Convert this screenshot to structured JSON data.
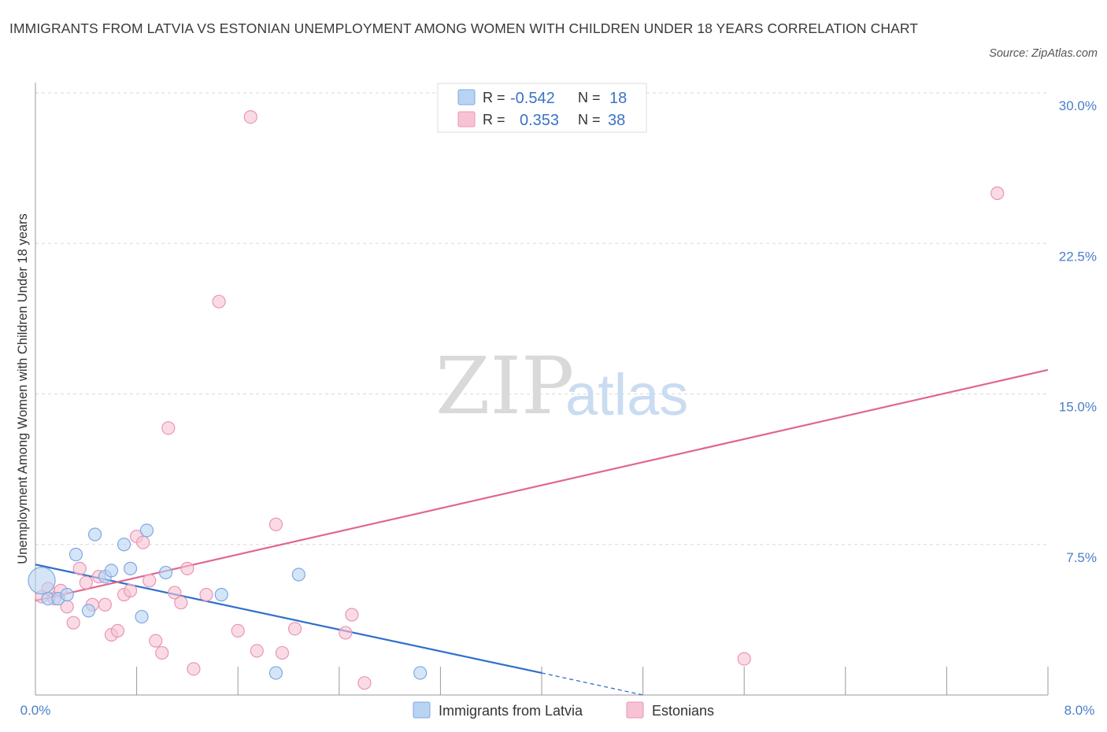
{
  "title": "IMMIGRANTS FROM LATVIA VS ESTONIAN UNEMPLOYMENT AMONG WOMEN WITH CHILDREN UNDER 18 YEARS CORRELATION CHART",
  "source": "Source: ZipAtlas.com",
  "watermark": {
    "zip": "ZIP",
    "atlas": "atlas"
  },
  "colors": {
    "blue_fill": "#b9d3f3",
    "blue_stroke": "#7ea9df",
    "blue_line": "#2f6fcc",
    "pink_fill": "#f7c3d4",
    "pink_stroke": "#e996b2",
    "pink_line": "#e0678f",
    "grid": "#d8d8d8",
    "tick_text": "#4a7ec9"
  },
  "legend": {
    "r_label": "R =",
    "n_label": "N =",
    "series": [
      {
        "name": "Immigrants from Latvia",
        "r": "-0.542",
        "n": "18"
      },
      {
        "name": "Estonians",
        "r": "0.353",
        "n": "38"
      }
    ]
  },
  "chart_data": {
    "type": "scatter",
    "title": "IMMIGRANTS FROM LATVIA VS ESTONIAN UNEMPLOYMENT AMONG WOMEN WITH CHILDREN UNDER 18 YEARS CORRELATION CHART",
    "xlabel": "",
    "ylabel": "Unemployment Among Women with Children Under 18 years",
    "xlim": [
      0,
      8
    ],
    "ylim": [
      0,
      30
    ],
    "x_tick_labels": [
      "0.0%",
      "8.0%"
    ],
    "y_ticks": [
      7.5,
      15.0,
      22.5,
      30.0
    ],
    "y_tick_labels": [
      "7.5%",
      "15.0%",
      "22.5%",
      "30.0%"
    ],
    "grid": true,
    "legend_position": "top-center",
    "series": [
      {
        "name": "Immigrants from Latvia",
        "color": "#7ea9df",
        "points": [
          [
            0.05,
            5.7
          ],
          [
            0.1,
            4.8
          ],
          [
            0.18,
            4.8
          ],
          [
            0.25,
            5.0
          ],
          [
            0.32,
            7.0
          ],
          [
            0.42,
            4.2
          ],
          [
            0.47,
            8.0
          ],
          [
            0.55,
            5.9
          ],
          [
            0.6,
            6.2
          ],
          [
            0.7,
            7.5
          ],
          [
            0.75,
            6.3
          ],
          [
            0.84,
            3.9
          ],
          [
            0.88,
            8.2
          ],
          [
            1.03,
            6.1
          ],
          [
            1.47,
            5.0
          ],
          [
            1.9,
            1.1
          ],
          [
            2.08,
            6.0
          ],
          [
            3.04,
            1.1
          ]
        ],
        "trend": {
          "x": [
            0,
            4.0
          ],
          "y": [
            6.5,
            1.1
          ],
          "dashed_extension": {
            "x": [
              4.0,
              4.8
            ],
            "y": [
              1.1,
              0.0
            ]
          }
        }
      },
      {
        "name": "Estonians",
        "color": "#e996b2",
        "points": [
          [
            0.05,
            4.9
          ],
          [
            0.1,
            5.3
          ],
          [
            0.15,
            4.8
          ],
          [
            0.2,
            5.2
          ],
          [
            0.25,
            4.4
          ],
          [
            0.3,
            3.6
          ],
          [
            0.35,
            6.3
          ],
          [
            0.4,
            5.6
          ],
          [
            0.45,
            4.5
          ],
          [
            0.5,
            5.9
          ],
          [
            0.55,
            4.5
          ],
          [
            0.6,
            3.0
          ],
          [
            0.65,
            3.2
          ],
          [
            0.7,
            5.0
          ],
          [
            0.75,
            5.2
          ],
          [
            0.8,
            7.9
          ],
          [
            0.85,
            7.6
          ],
          [
            0.9,
            5.7
          ],
          [
            0.95,
            2.7
          ],
          [
            1.0,
            2.1
          ],
          [
            1.05,
            13.3
          ],
          [
            1.1,
            5.1
          ],
          [
            1.15,
            4.6
          ],
          [
            1.2,
            6.3
          ],
          [
            1.25,
            1.3
          ],
          [
            1.35,
            5.0
          ],
          [
            1.45,
            19.6
          ],
          [
            1.6,
            3.2
          ],
          [
            1.7,
            28.8
          ],
          [
            1.75,
            2.2
          ],
          [
            1.9,
            8.5
          ],
          [
            1.95,
            2.1
          ],
          [
            2.05,
            3.3
          ],
          [
            2.45,
            3.1
          ],
          [
            2.5,
            4.0
          ],
          [
            2.6,
            0.6
          ],
          [
            5.6,
            1.8
          ],
          [
            7.6,
            25.0
          ]
        ],
        "trend": {
          "x": [
            0,
            8.0
          ],
          "y": [
            4.7,
            16.2
          ]
        }
      }
    ]
  }
}
